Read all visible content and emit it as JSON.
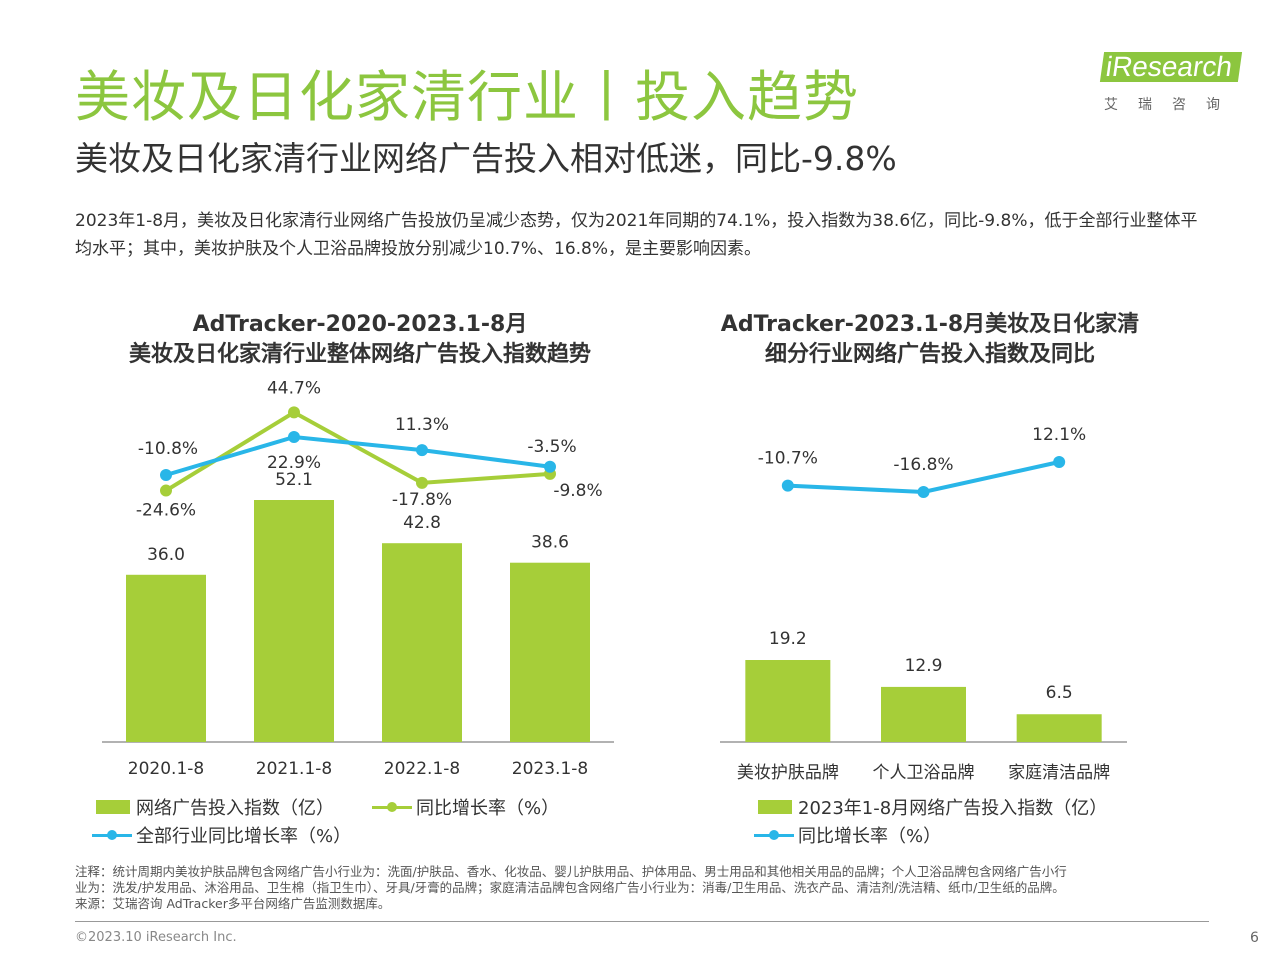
{
  "header": {
    "title": "美妆及日化家清行业丨投入趋势",
    "subtitle": "美妆及日化家清行业网络广告投入相对低迷，同比-9.8%",
    "logo_text": "iResearch",
    "logo_cn": "艾瑞咨询"
  },
  "summary": "2023年1-8月，美妆及日化家清行业网络广告投放仍呈减少态势，仅为2021年同期的74.1%，投入指数为38.6亿，同比-9.8%，低于全部行业整体平均水平；其中，美妆护肤及个人卫浴品牌投放分别减少10.7%、16.8%，是主要影响因素。",
  "colors": {
    "bar": "#A6CE39",
    "line_green": "#A6CE39",
    "line_blue": "#29B6E8",
    "title_green": "#8CC63F"
  },
  "chart_data": [
    {
      "type": "bar",
      "title": "AdTracker-2020-2023.1-8月\n美妆及日化家清行业整体网络广告投入指数趋势",
      "title_line1": "AdTracker-2020-2023.1-8月",
      "title_line2": "美妆及日化家清行业整体网络广告投入指数趋势",
      "categories": [
        "2020.1-8",
        "2021.1-8",
        "2022.1-8",
        "2023.1-8"
      ],
      "series": [
        {
          "name": "网络广告投入指数（亿）",
          "type": "bar",
          "values": [
            36.0,
            52.1,
            42.8,
            38.6
          ],
          "labels": [
            "36.0",
            "52.1",
            "42.8",
            "38.6"
          ]
        },
        {
          "name": "同比增长率（%）",
          "type": "line",
          "values": [
            -24.6,
            44.7,
            -17.8,
            -9.8
          ],
          "labels": [
            "-24.6%",
            "44.7%",
            "-17.8%",
            "-9.8%"
          ]
        },
        {
          "name": "全部行业同比增长率（%）",
          "type": "line",
          "values": [
            -10.8,
            22.9,
            11.3,
            -3.5
          ],
          "labels": [
            "-10.8%",
            "22.9%",
            "11.3%",
            "-3.5%"
          ]
        }
      ],
      "bar_ylim": [
        0,
        70
      ],
      "line_ylim": [
        -40,
        60
      ],
      "legend": "bottom"
    },
    {
      "type": "bar",
      "title": "AdTracker-2023.1-8月美妆及日化家清\n细分行业网络广告投入指数及同比",
      "title_line1": "AdTracker-2023.1-8月美妆及日化家清",
      "title_line2": "细分行业网络广告投入指数及同比",
      "categories": [
        "美妆护肤品牌",
        "个人卫浴品牌",
        "家庭清洁品牌"
      ],
      "series": [
        {
          "name": "2023年1-8月网络广告投入指数（亿）",
          "type": "bar",
          "values": [
            19.2,
            12.9,
            6.5
          ],
          "labels": [
            "19.2",
            "12.9",
            "6.5"
          ]
        },
        {
          "name": "同比增长率（%）",
          "type": "line",
          "values": [
            -10.7,
            -16.8,
            12.1
          ],
          "labels": [
            "-10.7%",
            "-16.8%",
            "12.1%"
          ]
        }
      ],
      "bar_ylim": [
        0,
        60
      ],
      "line_ylim": [
        -60,
        20
      ],
      "legend": "bottom"
    }
  ],
  "footer": {
    "note_line1": "注释：统计周期内美妆护肤品牌包含网络广告小行业为：洗面/护肤品、香水、化妆品、婴儿护肤用品、护体用品、男士用品和其他相关用品的品牌；个人卫浴品牌包含网络广告小行",
    "note_line2": "业为：洗发/护发用品、沐浴用品、卫生棉（指卫生巾）、牙具/牙膏的品牌；家庭清洁品牌包含网络广告小行业为：消毒/卫生用品、洗衣产品、清洁剂/洗洁精、纸巾/卫生纸的品牌。",
    "source": "来源：艾瑞咨询 AdTracker多平台网络广告监测数据库。",
    "copyright": "©2023.10 iResearch Inc.",
    "page_number": "6"
  }
}
